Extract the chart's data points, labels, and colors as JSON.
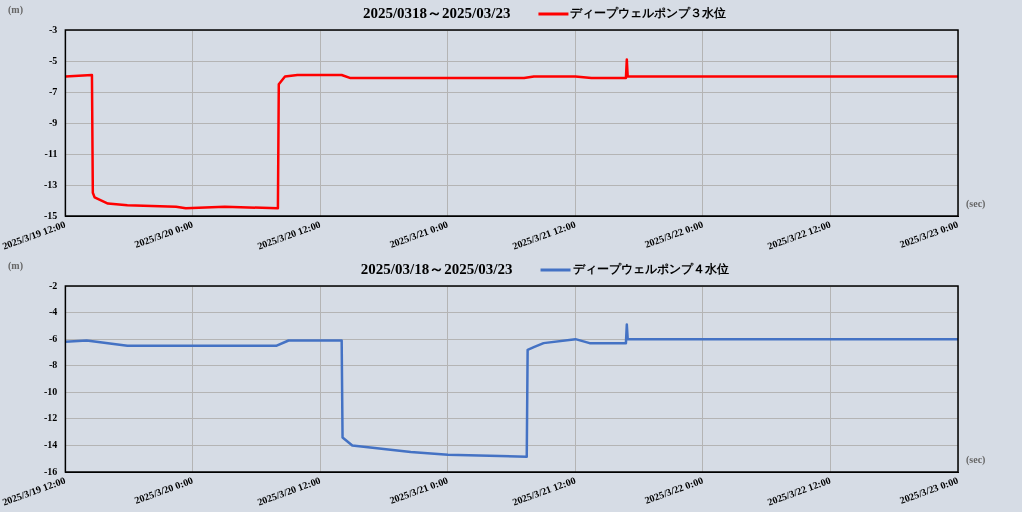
{
  "chart_data": [
    {
      "type": "line",
      "title": "2025/0318～2025/03/23",
      "ylabel": "(m)",
      "xlabel": "(sec)",
      "legend": "top",
      "grid": true,
      "marker": "none",
      "line_style": "solid",
      "xlim": [
        "2025-03-19T12:00",
        "2025-03-23T00:00"
      ],
      "xticks": [
        {
          "value": "2025-03-19T12:00",
          "label": "2025/3/19 12:00"
        },
        {
          "value": "2025-03-20T00:00",
          "label": "2025/3/20 0:00"
        },
        {
          "value": "2025-03-20T12:00",
          "label": "2025/3/20 12:00"
        },
        {
          "value": "2025-03-21T00:00",
          "label": "2025/3/21 0:00"
        },
        {
          "value": "2025-03-21T12:00",
          "label": "2025/3/21 12:00"
        },
        {
          "value": "2025-03-22T00:00",
          "label": "2025/3/22 0:00"
        },
        {
          "value": "2025-03-22T12:00",
          "label": "2025/3/22 12:00"
        },
        {
          "value": "2025-03-23T00:00",
          "label": "2025/3/23 0:00"
        }
      ],
      "ylim": [
        -15,
        -3
      ],
      "yticks": [
        -3,
        -5,
        -7,
        -9,
        -11,
        -13,
        -15
      ],
      "series": [
        {
          "name": "ディープウェルポンプ３水位",
          "color": "#ff0000",
          "x": [
            "2025-03-19T12:00",
            "2025-03-19T14:30",
            "2025-03-19T14:35",
            "2025-03-19T14:45",
            "2025-03-19T16:00",
            "2025-03-19T17:50",
            "2025-03-19T22:25",
            "2025-03-19T23:20",
            "2025-03-20T03:00",
            "2025-03-20T08:00",
            "2025-03-20T08:05",
            "2025-03-20T08:40",
            "2025-03-20T09:50",
            "2025-03-20T14:00",
            "2025-03-20T14:50",
            "2025-03-21T07:10",
            "2025-03-21T08:05",
            "2025-03-21T12:00",
            "2025-03-21T13:30",
            "2025-03-21T16:45",
            "2025-03-21T16:50",
            "2025-03-21T16:55",
            "2025-03-23T00:00"
          ],
          "values": [
            -6.0,
            -5.9,
            -13.5,
            -13.8,
            -14.2,
            -14.3,
            -14.4,
            -14.5,
            -14.4,
            -14.5,
            -6.5,
            -6.0,
            -5.9,
            -5.9,
            -6.1,
            -6.1,
            -6.0,
            -6.0,
            -6.1,
            -6.1,
            -4.9,
            -6.0,
            -6.0
          ]
        }
      ]
    },
    {
      "type": "line",
      "title": "2025/03/18～2025/03/23",
      "ylabel": "(m)",
      "xlabel": "(sec)",
      "legend": "top",
      "grid": true,
      "marker": "none",
      "line_style": "solid",
      "xlim": [
        "2025-03-19T12:00",
        "2025-03-23T00:00"
      ],
      "xticks": [
        {
          "value": "2025-03-19T12:00",
          "label": "2025/3/19 12:00"
        },
        {
          "value": "2025-03-20T00:00",
          "label": "2025/3/20 0:00"
        },
        {
          "value": "2025-03-20T12:00",
          "label": "2025/3/20 12:00"
        },
        {
          "value": "2025-03-21T00:00",
          "label": "2025/3/21 0:00"
        },
        {
          "value": "2025-03-21T12:00",
          "label": "2025/3/21 12:00"
        },
        {
          "value": "2025-03-22T00:00",
          "label": "2025/3/22 0:00"
        },
        {
          "value": "2025-03-22T12:00",
          "label": "2025/3/22 12:00"
        },
        {
          "value": "2025-03-23T00:00",
          "label": "2025/3/23 0:00"
        }
      ],
      "ylim": [
        -16,
        -2
      ],
      "yticks": [
        -2,
        -4,
        -6,
        -8,
        -10,
        -12,
        -14,
        -16
      ],
      "series": [
        {
          "name": "ディープウェルポンプ４水位",
          "color": "#4472c4",
          "x": [
            "2025-03-19T12:00",
            "2025-03-19T14:00",
            "2025-03-19T17:50",
            "2025-03-20T07:50",
            "2025-03-20T09:00",
            "2025-03-20T14:00",
            "2025-03-20T14:05",
            "2025-03-20T15:00",
            "2025-03-20T20:30",
            "2025-03-21T00:00",
            "2025-03-21T07:25",
            "2025-03-21T07:30",
            "2025-03-21T08:05",
            "2025-03-21T09:00",
            "2025-03-21T12:00",
            "2025-03-21T13:20",
            "2025-03-21T16:45",
            "2025-03-21T16:50",
            "2025-03-21T16:55",
            "2025-03-23T00:00"
          ],
          "values": [
            -6.2,
            -6.1,
            -6.5,
            -6.5,
            -6.1,
            -6.1,
            -13.4,
            -14.0,
            -14.5,
            -14.7,
            -14.85,
            -6.8,
            -6.6,
            -6.3,
            -6.0,
            -6.3,
            -6.3,
            -4.9,
            -6.0,
            -6.0
          ]
        }
      ]
    }
  ]
}
